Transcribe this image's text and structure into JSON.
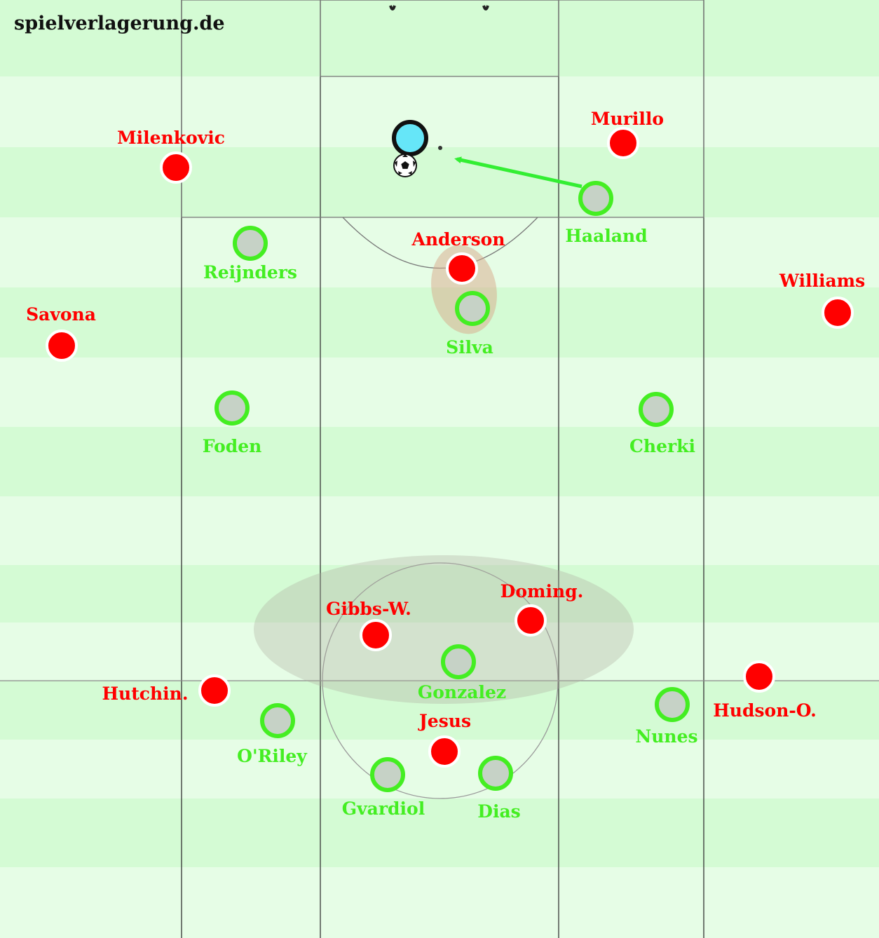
{
  "brand": "spielverlagerung.de",
  "colors": {
    "red_team": "#ff0000",
    "green_team": "#44ee22",
    "green_fill": "#c6d2c6",
    "stripe_light": "#e6fde6",
    "stripe_dark": "#d4fbd4",
    "line": "#333333",
    "goalkeeper": "#66e6f8",
    "arrow": "#33ee33"
  },
  "red_players": [
    {
      "id": "milenkovic",
      "name": "Milenkovic"
    },
    {
      "id": "murillo",
      "name": "Murillo"
    },
    {
      "id": "anderson",
      "name": "Anderson"
    },
    {
      "id": "williams",
      "name": "Williams"
    },
    {
      "id": "savona",
      "name": "Savona"
    },
    {
      "id": "gibbs-w",
      "name": "Gibbs-W."
    },
    {
      "id": "doming",
      "name": "Doming."
    },
    {
      "id": "hutchin",
      "name": "Hutchin."
    },
    {
      "id": "hudson-o",
      "name": "Hudson-O."
    },
    {
      "id": "jesus",
      "name": "Jesus"
    }
  ],
  "green_players": [
    {
      "id": "haaland",
      "name": "Haaland"
    },
    {
      "id": "reijnders",
      "name": "Reijnders"
    },
    {
      "id": "silva",
      "name": "Silva"
    },
    {
      "id": "foden",
      "name": "Foden"
    },
    {
      "id": "cherki",
      "name": "Cherki"
    },
    {
      "id": "gonzalez",
      "name": "Gonzalez"
    },
    {
      "id": "oriley",
      "name": "O'Riley"
    },
    {
      "id": "nunes",
      "name": "Nunes"
    },
    {
      "id": "gvardiol",
      "name": "Gvardiol"
    },
    {
      "id": "dias",
      "name": "Dias"
    }
  ],
  "goalkeeper": {
    "id": "goalkeeper"
  },
  "ball": {
    "id": "ball"
  },
  "pass_arrow": {
    "from": "haaland",
    "to": "goalkeeper"
  }
}
